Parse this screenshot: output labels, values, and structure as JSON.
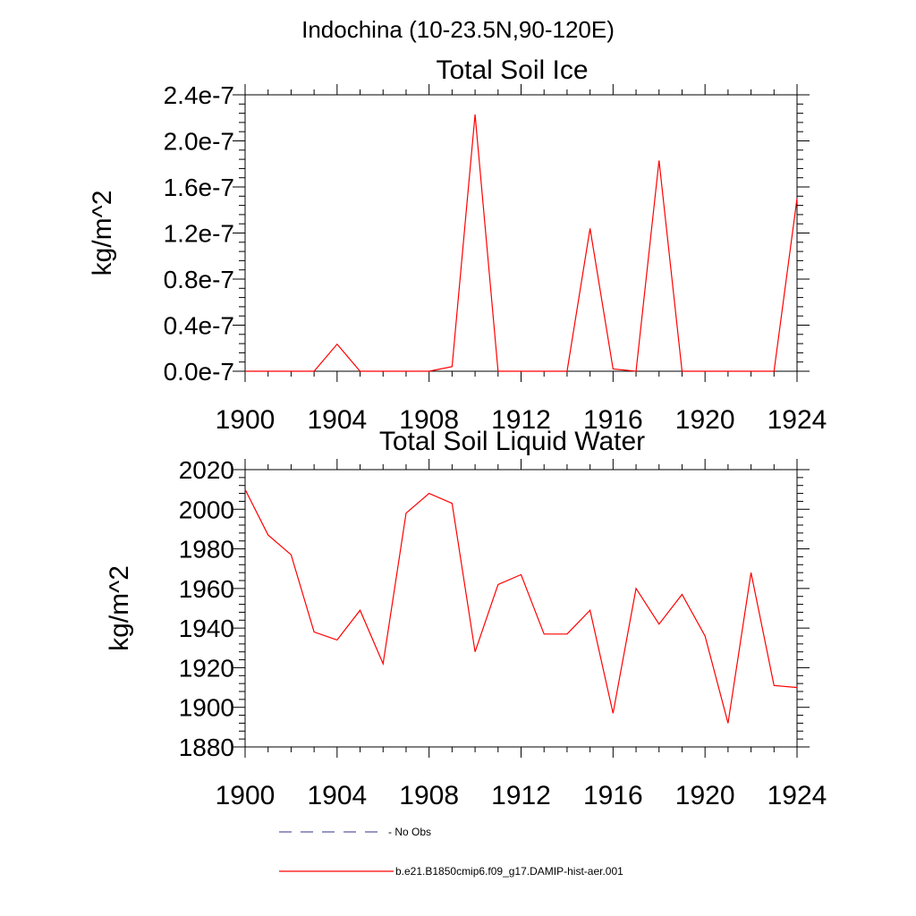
{
  "figure_title": "Indochina (10-23.5N,90-120E)",
  "legend": {
    "entries": [
      {
        "label": "- No Obs",
        "color": "#5a5aa0",
        "style": "dashed"
      },
      {
        "label": "b.e21.B1850cmip6.f09_g17.DAMIP-hist-aer.001",
        "color": "#ff0000",
        "style": "solid"
      }
    ]
  },
  "colors": {
    "line": "#ff0000",
    "axes": "#000000"
  },
  "chart_data": [
    {
      "type": "line",
      "title": "Total Soil Ice",
      "ylabel": "kg/m^2",
      "xlabel": "",
      "xlim": [
        1900,
        1924
      ],
      "ylim": [
        0,
        2.4e-07
      ],
      "xticks": [
        1900,
        1904,
        1908,
        1912,
        1916,
        1920,
        1924
      ],
      "xtick_labels": [
        "1900",
        "1904",
        "1908",
        "1912",
        "1916",
        "1920",
        "1924"
      ],
      "yticks": [
        0,
        4e-08,
        8e-08,
        1.2e-07,
        1.6e-07,
        2e-07,
        2.4e-07
      ],
      "ytick_labels": [
        "0.0e-7",
        "0.4e-7",
        "0.8e-7",
        "1.2e-7",
        "1.6e-7",
        "2.0e-7",
        "2.4e-7"
      ],
      "grid": false,
      "series": [
        {
          "color": "#ff0000",
          "x": [
            1900,
            1901,
            1902,
            1903,
            1904,
            1905,
            1906,
            1907,
            1908,
            1909,
            1910,
            1911,
            1912,
            1913,
            1914,
            1915,
            1916,
            1917,
            1918,
            1919,
            1920,
            1921,
            1922,
            1923,
            1924
          ],
          "values": [
            0,
            0,
            0,
            0,
            2.35e-08,
            0,
            0,
            0,
            0,
            4e-09,
            2.23e-07,
            0,
            0,
            0,
            0,
            1.24e-07,
            2e-09,
            0,
            1.83e-07,
            0,
            0,
            0,
            0,
            0,
            1.5e-07
          ]
        }
      ]
    },
    {
      "type": "line",
      "title": "Total Soil Liquid Water",
      "ylabel": "kg/m^2",
      "xlabel": "",
      "xlim": [
        1900,
        1924
      ],
      "ylim": [
        1880,
        2020
      ],
      "xticks": [
        1900,
        1904,
        1908,
        1912,
        1916,
        1920,
        1924
      ],
      "xtick_labels": [
        "1900",
        "1904",
        "1908",
        "1912",
        "1916",
        "1920",
        "1924"
      ],
      "yticks": [
        1880,
        1900,
        1920,
        1940,
        1960,
        1980,
        2000,
        2020
      ],
      "ytick_labels": [
        "1880",
        "1900",
        "1920",
        "1940",
        "1960",
        "1980",
        "2000",
        "2020"
      ],
      "grid": false,
      "series": [
        {
          "color": "#ff0000",
          "x": [
            1900,
            1901,
            1902,
            1903,
            1904,
            1905,
            1906,
            1907,
            1908,
            1909,
            1910,
            1911,
            1912,
            1913,
            1914,
            1915,
            1916,
            1917,
            1918,
            1919,
            1920,
            1921,
            1922,
            1923,
            1924
          ],
          "values": [
            2010,
            1987,
            1977,
            1938,
            1934,
            1949,
            1922,
            1998,
            2008,
            2003,
            1928,
            1962,
            1967,
            1937,
            1937,
            1949,
            1897,
            1960,
            1942,
            1957,
            1936,
            1892,
            1968,
            1911,
            1910
          ]
        }
      ]
    }
  ]
}
